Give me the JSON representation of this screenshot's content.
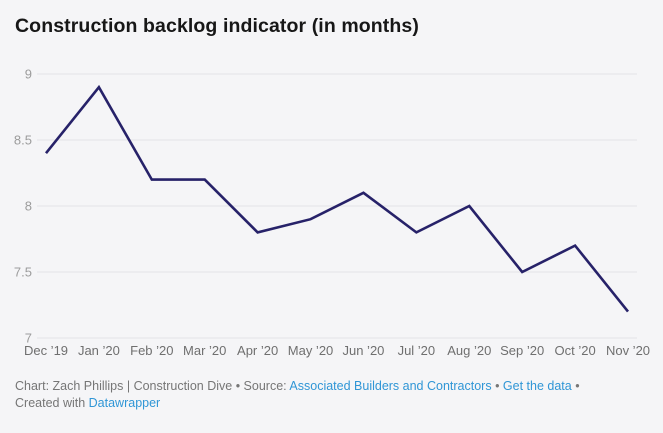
{
  "title": "Construction backlog indicator (in months)",
  "colors": {
    "background": "#f5f5f7",
    "line": "#272269",
    "grid": "#e4e4e7",
    "y_label": "#9c9c9c",
    "x_label": "#6f6f6f",
    "footer_text": "#767676",
    "link": "#3096d6",
    "title": "#171717"
  },
  "chart_data": {
    "type": "line",
    "categories": [
      "Dec ’19",
      "Jan ’20",
      "Feb ’20",
      "Mar ’20",
      "Apr ’20",
      "May ’20",
      "Jun ’20",
      "Jul ’20",
      "Aug ’20",
      "Sep ’20",
      "Oct ’20",
      "Nov ’20"
    ],
    "values": [
      8.4,
      8.9,
      8.2,
      8.2,
      7.8,
      7.9,
      8.1,
      7.8,
      8.0,
      7.5,
      7.7,
      7.2
    ],
    "title": "Construction backlog indicator (in months)",
    "xlabel": "",
    "ylabel": "",
    "ylim": [
      7,
      9
    ],
    "yticks": [
      7,
      7.5,
      8,
      8.5,
      9
    ],
    "ytick_labels": [
      "7",
      "7.5",
      "8",
      "8.5",
      "9"
    ],
    "grid": true,
    "legend": false,
    "line_color": "#272269"
  },
  "footer": {
    "byline_prefix": "Chart: Zach Phillips | Construction Dive • Source: ",
    "source_link": "Associated Builders and Contractors",
    "sep1": " • ",
    "get_data_link": "Get the data",
    "sep2": " •",
    "created_prefix": "Created with ",
    "tool_link": "Datawrapper"
  }
}
